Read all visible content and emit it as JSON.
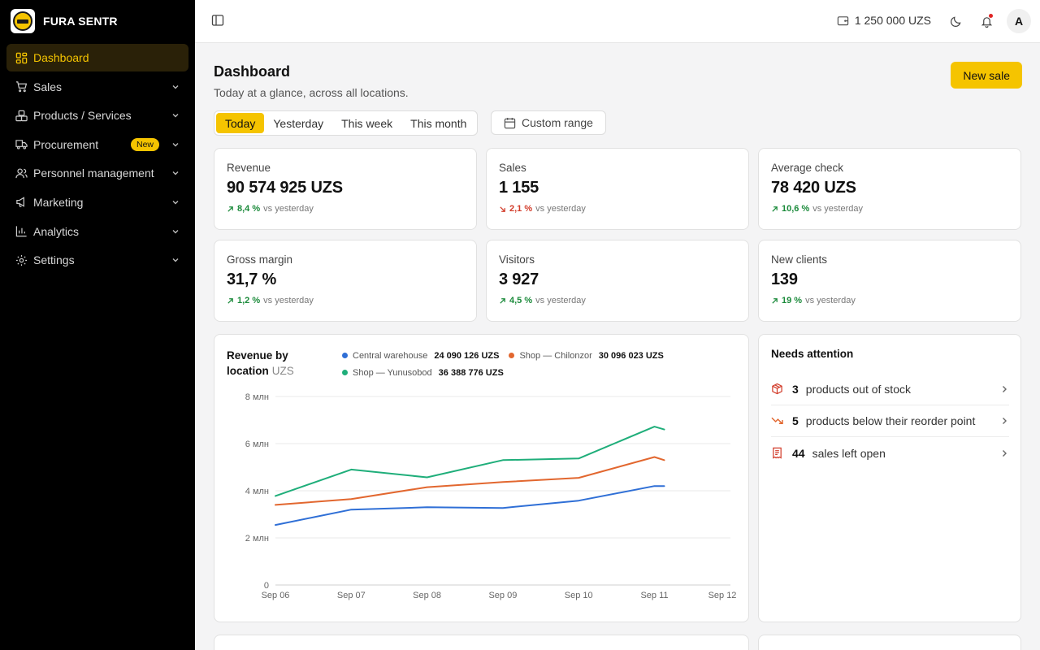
{
  "brand": {
    "name": "FURA SENTR"
  },
  "sidebar": {
    "items": [
      {
        "label": "Dashboard",
        "icon": "dashboard-icon",
        "active": true
      },
      {
        "label": "Sales",
        "icon": "cart-icon"
      },
      {
        "label": "Products / Services",
        "icon": "boxes-icon"
      },
      {
        "label": "Procurement",
        "icon": "truck-icon",
        "badge": "New"
      },
      {
        "label": "Personnel management",
        "icon": "users-icon"
      },
      {
        "label": "Marketing",
        "icon": "megaphone-icon"
      },
      {
        "label": "Analytics",
        "icon": "bar-chart-icon"
      },
      {
        "label": "Settings",
        "icon": "gear-icon"
      }
    ]
  },
  "topbar": {
    "balance": "1 250 000 UZS",
    "avatar_initial": "A"
  },
  "page": {
    "title": "Dashboard",
    "subtitle": "Today at a glance, across all locations.",
    "new_sale": "New sale",
    "periods": [
      "Today",
      "Yesterday",
      "This week",
      "This month"
    ],
    "active_period": "Today",
    "custom_range": "Custom range"
  },
  "kpis": [
    {
      "label": "Revenue",
      "value": "90 574 925 UZS",
      "delta": "8,4 %",
      "trend": "up",
      "vs": "vs yesterday"
    },
    {
      "label": "Sales",
      "value": "1 155",
      "delta": "2,1 %",
      "trend": "down",
      "vs": "vs yesterday"
    },
    {
      "label": "Average check",
      "value": "78 420 UZS",
      "delta": "10,6 %",
      "trend": "up",
      "vs": "vs yesterday"
    },
    {
      "label": "Gross margin",
      "value": "31,7 %",
      "delta": "1,2 %",
      "trend": "up",
      "vs": "vs yesterday"
    },
    {
      "label": "Visitors",
      "value": "3 927",
      "delta": "4,5 %",
      "trend": "up",
      "vs": "vs yesterday"
    },
    {
      "label": "New clients",
      "value": "139",
      "delta": "19 %",
      "trend": "up",
      "vs": "vs yesterday"
    }
  ],
  "colors": {
    "accent": "#f5c400",
    "up": "#1a8a3a",
    "down": "#d23c2a"
  },
  "chart_data": {
    "type": "line",
    "title": "Revenue by location",
    "unit": "UZS",
    "x": [
      "Sep 06",
      "Sep 07",
      "Sep 08",
      "Sep 09",
      "Sep 10",
      "Sep 11",
      "Sep 11.1"
    ],
    "x_ticks": [
      "Sep 06",
      "Sep 07",
      "Sep 08",
      "Sep 09",
      "Sep 10",
      "Sep 11",
      "Sep 12"
    ],
    "y_ticks": [
      0,
      2000000,
      4000000,
      6000000,
      8000000
    ],
    "y_tick_labels": [
      "0",
      "2 млн",
      "4 млн",
      "6 млн",
      "8 млн"
    ],
    "ylim": [
      0,
      8000000
    ],
    "grid": true,
    "series": [
      {
        "name": "Central warehouse",
        "total": "24 090 126 UZS",
        "color": "#2f6fd6",
        "values": [
          2550000,
          3200000,
          3300000,
          3270000,
          3580000,
          4200000,
          4200000
        ]
      },
      {
        "name": "Shop — Chilonzor",
        "total": "30 096 023 UZS",
        "color": "#e2672f",
        "values": [
          3400000,
          3650000,
          4150000,
          4370000,
          4550000,
          5430000,
          5300000
        ]
      },
      {
        "name": "Shop — Yunusobod",
        "total": "36 388 776 UZS",
        "color": "#1fae7a",
        "values": [
          3780000,
          4900000,
          4570000,
          5300000,
          5370000,
          6720000,
          6600000
        ]
      }
    ]
  },
  "attention": {
    "title": "Needs attention",
    "items": [
      {
        "count": "3",
        "text": "products out of stock",
        "icon": "package-icon"
      },
      {
        "count": "5",
        "text": "products below their reorder point",
        "icon": "trend-down-icon"
      },
      {
        "count": "44",
        "text": "sales left open",
        "icon": "receipt-icon"
      }
    ]
  }
}
